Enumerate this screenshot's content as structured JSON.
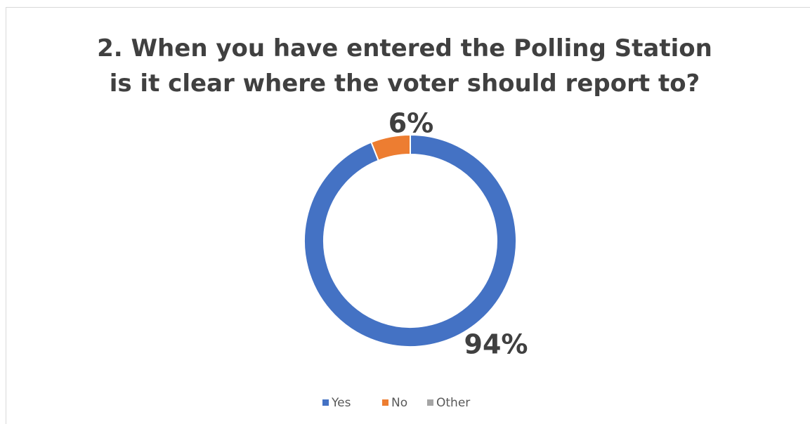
{
  "chart_data": {
    "type": "donut",
    "title": "2. When you have entered the Polling Station is it clear where the voter should report to?",
    "categories": [
      "Yes",
      "No",
      "Other"
    ],
    "values": [
      94,
      6,
      0
    ],
    "value_labels": [
      "94%",
      "6%",
      null
    ],
    "colors": [
      "#4472c4",
      "#ed7d31",
      "#a5a5a5"
    ],
    "legend": "bottom"
  }
}
